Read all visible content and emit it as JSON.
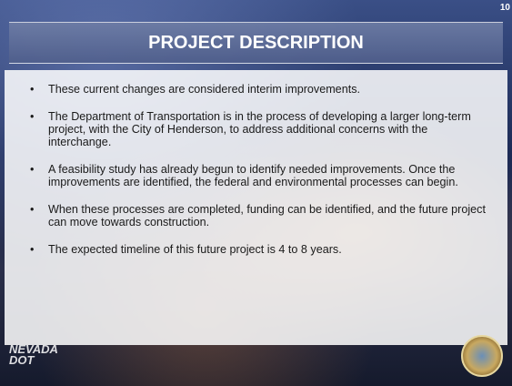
{
  "slide_number": "10",
  "header": {
    "title": "PROJECT DESCRIPTION"
  },
  "bullets": [
    "These current changes are considered interim improvements.",
    "The Department of Transportation is in the process of developing a larger long-term project, with the City of Henderson, to address additional concerns with the interchange.",
    "A feasibility study has already begun to identify needed improvements. Once the improvements are identified, the federal and environmental processes can begin.",
    "When these processes are completed, funding can be identified, and the future project can move towards construction.",
    "The expected timeline of this future project is 4 to 8 years."
  ],
  "logo": {
    "line1": "NEVADA",
    "line2": "DOT"
  }
}
